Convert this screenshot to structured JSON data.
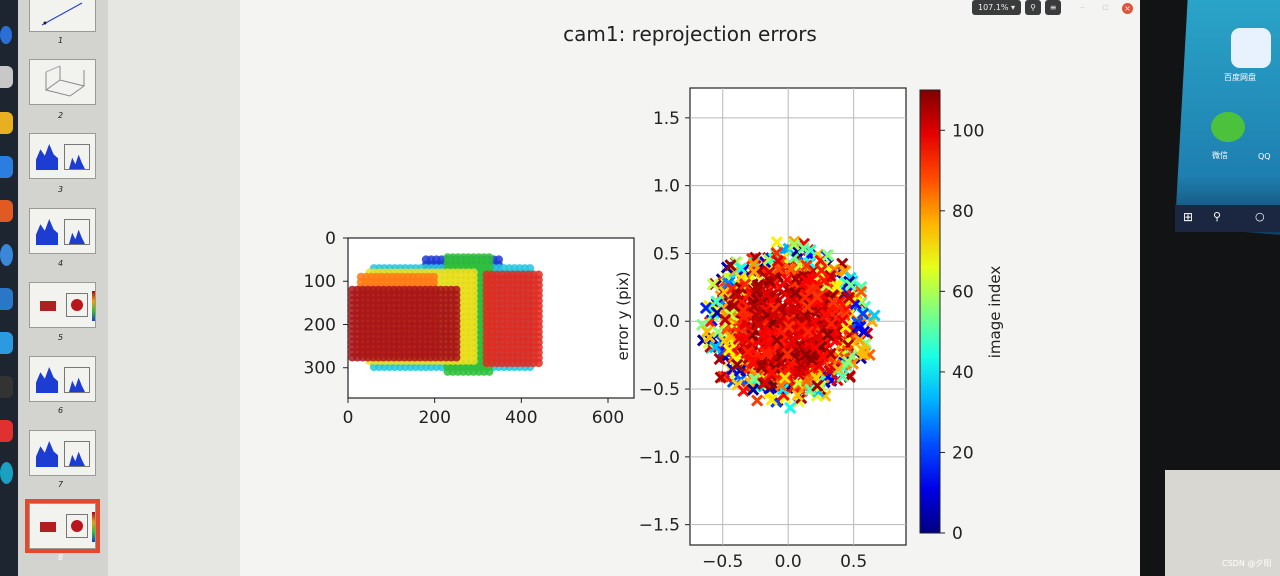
{
  "toolbar": {
    "zoom": "107.1%",
    "search_icon": "search-icon",
    "menu_icon": "hamburger-menu-icon"
  },
  "thumbnails": [
    {
      "number": "1",
      "type": "line"
    },
    {
      "number": "2",
      "type": "3d"
    },
    {
      "number": "3",
      "type": "histogram"
    },
    {
      "number": "4",
      "type": "histogram"
    },
    {
      "number": "5",
      "type": "reprojection"
    },
    {
      "number": "6",
      "type": "histogram"
    },
    {
      "number": "7",
      "type": "histogram"
    },
    {
      "number": "8",
      "type": "reprojection",
      "selected": true
    }
  ],
  "figure": {
    "title": "cam1: reprojection errors"
  },
  "chart_data": [
    {
      "type": "scatter",
      "title": "",
      "xlabel": "",
      "ylabel": "",
      "xlim": [
        0,
        660
      ],
      "ylim": [
        370,
        0
      ],
      "xticks": [
        "0",
        "200",
        "400",
        "600"
      ],
      "yticks": [
        "0",
        "100",
        "200",
        "300"
      ],
      "grid": false,
      "series": [
        {
          "color": "#1e3ad4",
          "points_rect": [
            [
              180,
              50
            ],
            [
              350,
              75
            ]
          ]
        },
        {
          "color": "#22c8e0",
          "points_rect": [
            [
              60,
              70
            ],
            [
              420,
              300
            ]
          ]
        },
        {
          "color": "#2fbf3a",
          "points_rect": [
            [
              230,
              45
            ],
            [
              330,
              310
            ]
          ]
        },
        {
          "color": "#f0df20",
          "points_rect": [
            [
              50,
              80
            ],
            [
              290,
              290
            ]
          ]
        },
        {
          "color": "#ff7a18",
          "points_rect": [
            [
              30,
              90
            ],
            [
              200,
              280
            ]
          ]
        },
        {
          "color": "#e02c22",
          "points_rect": [
            [
              320,
              85
            ],
            [
              450,
              300
            ]
          ]
        },
        {
          "color": "#a8161a",
          "points_rect": [
            [
              10,
              120
            ],
            [
              250,
              280
            ]
          ]
        }
      ]
    },
    {
      "type": "scatter",
      "title": "",
      "xlabel": "",
      "ylabel": "error y (pix)",
      "xlim": [
        -0.75,
        0.9
      ],
      "ylim": [
        -1.65,
        1.72
      ],
      "xticks": [
        "−0.5",
        "0.0",
        "0.5"
      ],
      "yticks": [
        "1.5",
        "1.0",
        "0.5",
        "0.0",
        "−0.5",
        "−1.0",
        "−1.5"
      ],
      "grid": true,
      "marker": "x",
      "cluster": {
        "center": [
          0.0,
          -0.02
        ],
        "radius": 0.6,
        "color_range": [
          0,
          110
        ]
      },
      "colorbar": {
        "label": "image index",
        "ticks": [
          "100",
          "80",
          "60",
          "40",
          "20",
          "0"
        ],
        "range": [
          0,
          110
        ],
        "colormap": "jet"
      }
    }
  ],
  "overlay": {
    "watermark": "CSDN @夕阳"
  },
  "monitor2": {
    "apps": [
      "百度网盘",
      "微信",
      "QQ"
    ]
  }
}
